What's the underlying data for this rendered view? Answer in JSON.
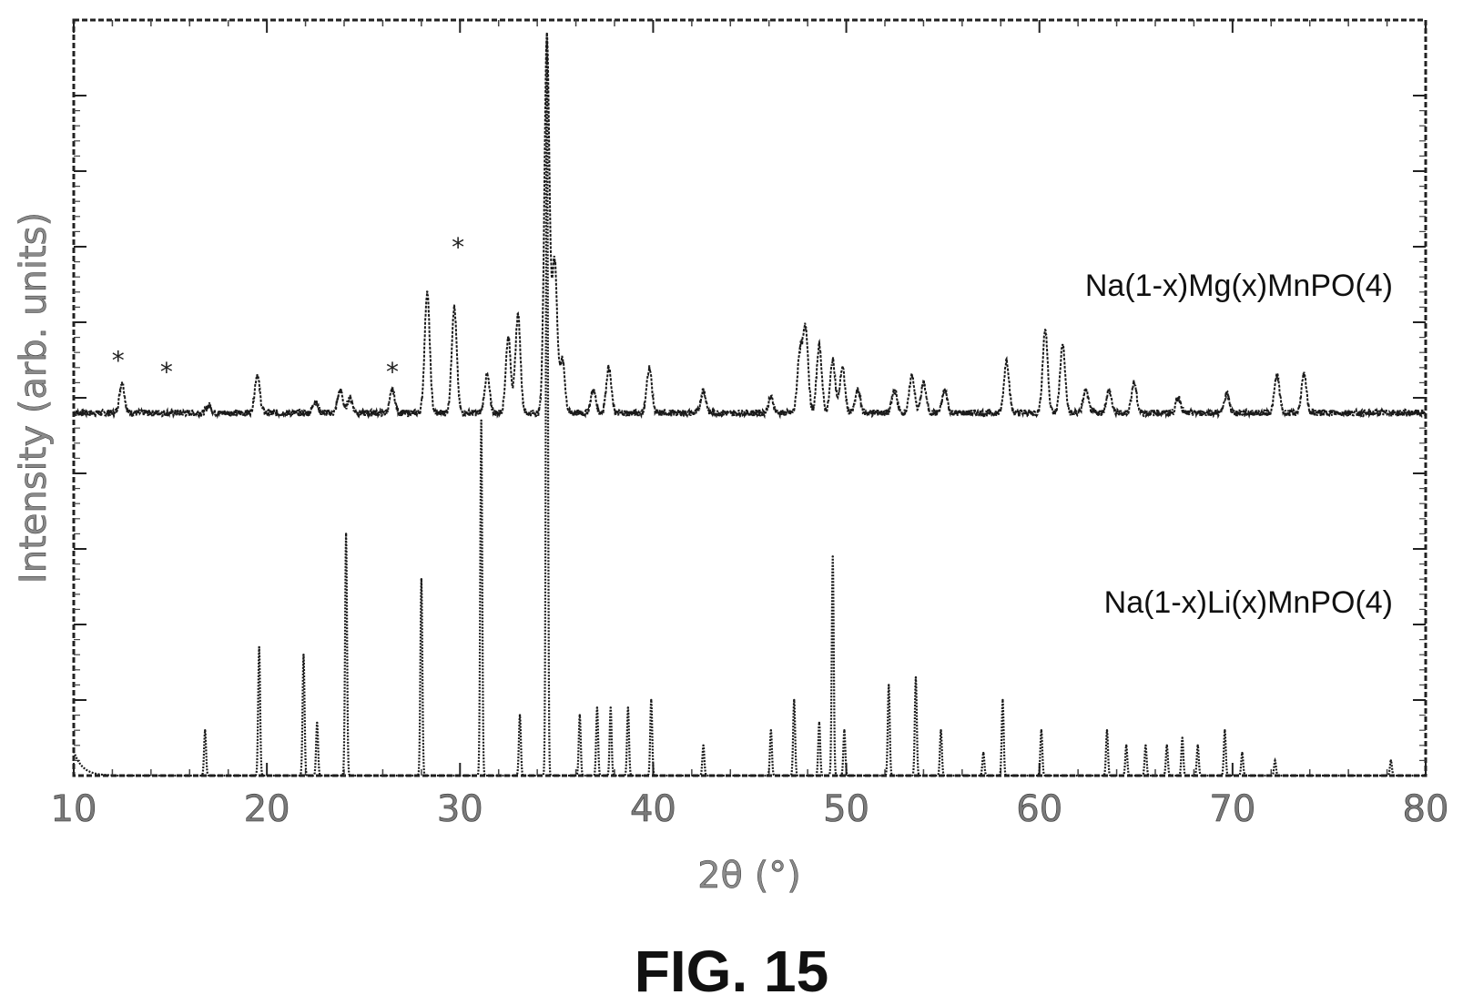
{
  "figure_label": "FIG. 15",
  "chart_data": {
    "type": "line",
    "xlabel": "2θ (°)",
    "ylabel": "Intensity (arb. units)",
    "xlim": [
      10,
      80
    ],
    "ylim": [
      0,
      100
    ],
    "xticks": [
      10,
      20,
      30,
      40,
      50,
      60,
      70,
      80
    ],
    "grid": false,
    "series": [
      {
        "name": "Na(1-x)Mg(x)MnPO(4)",
        "baseline": 48,
        "peaks": [
          {
            "x": 12.5,
            "y": 52
          },
          {
            "x": 17.0,
            "y": 49
          },
          {
            "x": 19.5,
            "y": 53
          },
          {
            "x": 22.5,
            "y": 49.5
          },
          {
            "x": 23.8,
            "y": 51
          },
          {
            "x": 24.3,
            "y": 50
          },
          {
            "x": 26.5,
            "y": 51
          },
          {
            "x": 28.3,
            "y": 64
          },
          {
            "x": 29.7,
            "y": 62
          },
          {
            "x": 31.4,
            "y": 53
          },
          {
            "x": 32.5,
            "y": 58
          },
          {
            "x": 33.0,
            "y": 61
          },
          {
            "x": 34.5,
            "y": 98
          },
          {
            "x": 34.9,
            "y": 68
          },
          {
            "x": 35.3,
            "y": 55
          },
          {
            "x": 36.9,
            "y": 51
          },
          {
            "x": 37.7,
            "y": 54
          },
          {
            "x": 39.8,
            "y": 54
          },
          {
            "x": 42.6,
            "y": 51
          },
          {
            "x": 46.1,
            "y": 50
          },
          {
            "x": 47.6,
            "y": 56
          },
          {
            "x": 47.9,
            "y": 59
          },
          {
            "x": 48.6,
            "y": 57
          },
          {
            "x": 49.3,
            "y": 55
          },
          {
            "x": 49.8,
            "y": 54
          },
          {
            "x": 50.6,
            "y": 51
          },
          {
            "x": 52.5,
            "y": 51
          },
          {
            "x": 53.4,
            "y": 53
          },
          {
            "x": 54.0,
            "y": 52
          },
          {
            "x": 55.1,
            "y": 51
          },
          {
            "x": 58.3,
            "y": 55
          },
          {
            "x": 60.3,
            "y": 59
          },
          {
            "x": 61.2,
            "y": 57
          },
          {
            "x": 62.4,
            "y": 51
          },
          {
            "x": 63.6,
            "y": 51
          },
          {
            "x": 64.9,
            "y": 52
          },
          {
            "x": 67.2,
            "y": 50
          },
          {
            "x": 69.7,
            "y": 50.5
          },
          {
            "x": 72.3,
            "y": 53
          },
          {
            "x": 73.7,
            "y": 53
          }
        ]
      },
      {
        "name": "Na(1-x)Li(x)MnPO(4)",
        "baseline": 0,
        "peaks": [
          {
            "x": 16.8,
            "y": 6
          },
          {
            "x": 19.6,
            "y": 17
          },
          {
            "x": 21.9,
            "y": 16
          },
          {
            "x": 22.6,
            "y": 7
          },
          {
            "x": 24.1,
            "y": 32
          },
          {
            "x": 28.0,
            "y": 26
          },
          {
            "x": 31.1,
            "y": 47
          },
          {
            "x": 33.1,
            "y": 8
          },
          {
            "x": 34.5,
            "y": 98
          },
          {
            "x": 36.2,
            "y": 8
          },
          {
            "x": 37.1,
            "y": 9
          },
          {
            "x": 37.8,
            "y": 9
          },
          {
            "x": 38.7,
            "y": 9
          },
          {
            "x": 39.9,
            "y": 10
          },
          {
            "x": 42.6,
            "y": 4
          },
          {
            "x": 46.1,
            "y": 6
          },
          {
            "x": 47.3,
            "y": 10
          },
          {
            "x": 48.6,
            "y": 7
          },
          {
            "x": 49.3,
            "y": 29
          },
          {
            "x": 49.9,
            "y": 6
          },
          {
            "x": 52.2,
            "y": 12
          },
          {
            "x": 53.6,
            "y": 13
          },
          {
            "x": 54.9,
            "y": 6
          },
          {
            "x": 57.1,
            "y": 3
          },
          {
            "x": 58.1,
            "y": 10
          },
          {
            "x": 60.1,
            "y": 6
          },
          {
            "x": 63.5,
            "y": 6
          },
          {
            "x": 64.5,
            "y": 4
          },
          {
            "x": 65.5,
            "y": 4
          },
          {
            "x": 66.6,
            "y": 4
          },
          {
            "x": 67.4,
            "y": 5
          },
          {
            "x": 68.2,
            "y": 4
          },
          {
            "x": 69.6,
            "y": 6
          },
          {
            "x": 70.5,
            "y": 3
          },
          {
            "x": 72.2,
            "y": 2
          },
          {
            "x": 78.2,
            "y": 2
          }
        ]
      }
    ],
    "annotations": [
      {
        "text": "*",
        "x": 12.3,
        "y": 55
      },
      {
        "text": "*",
        "x": 14.8,
        "y": 53.5
      },
      {
        "text": "*",
        "x": 26.5,
        "y": 53.5
      },
      {
        "text": "*",
        "x": 29.9,
        "y": 70
      }
    ]
  }
}
